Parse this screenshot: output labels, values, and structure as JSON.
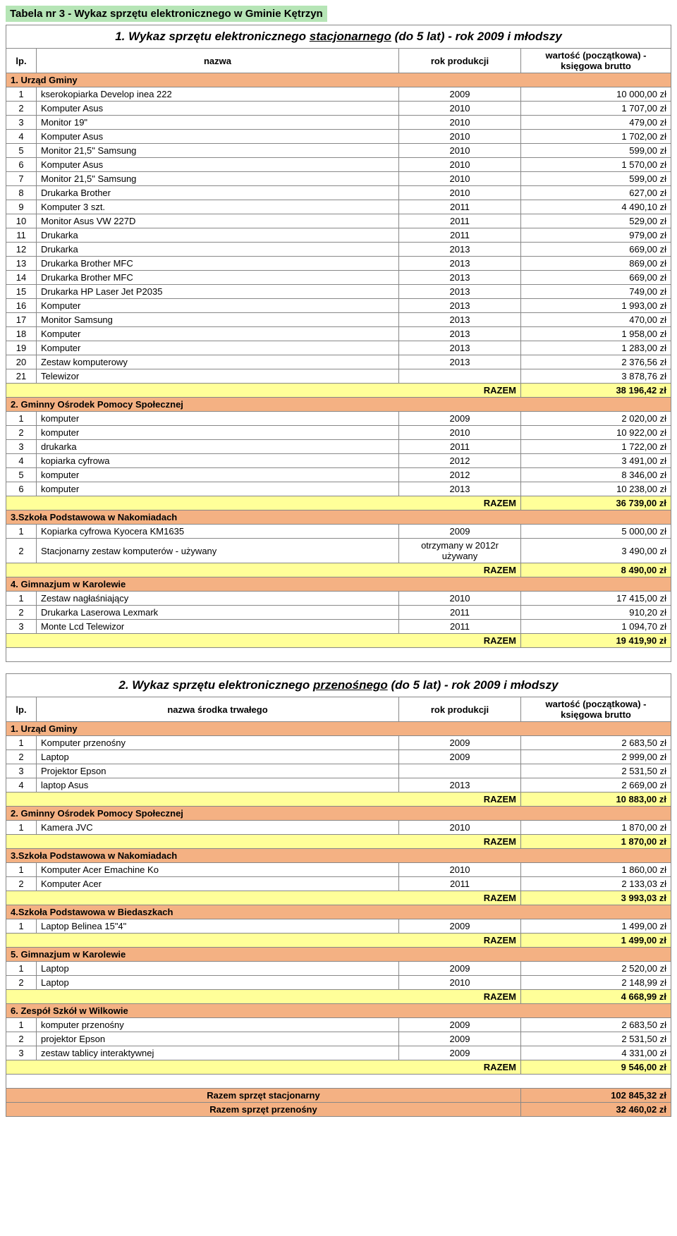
{
  "page_title": "Tabela nr 3 - Wykaz sprzętu elektronicznego w Gminie Kętrzyn",
  "table1": {
    "title_pre": "1. Wykaz sprzętu elektronicznego ",
    "title_underline": "stacjonarnego",
    "title_post": " (do 5 lat) - rok 2009 i młodszy",
    "headers": {
      "lp": "lp.",
      "name": "nazwa",
      "year": "rok produkcji",
      "value": "wartość (początkowa) - księgowa brutto"
    },
    "groups": [
      {
        "title": "1. Urząd Gminy",
        "rows": [
          {
            "lp": "1",
            "name": "kserokopiarka Develop inea 222",
            "year": "2009",
            "value": "10 000,00 zł"
          },
          {
            "lp": "2",
            "name": "Komputer Asus",
            "year": "2010",
            "value": "1 707,00 zł"
          },
          {
            "lp": "3",
            "name": "Monitor 19\"",
            "year": "2010",
            "value": "479,00 zł"
          },
          {
            "lp": "4",
            "name": "Komputer Asus",
            "year": "2010",
            "value": "1 702,00 zł"
          },
          {
            "lp": "5",
            "name": "Monitor 21,5\" Samsung",
            "year": "2010",
            "value": "599,00 zł"
          },
          {
            "lp": "6",
            "name": "Komputer Asus",
            "year": "2010",
            "value": "1 570,00 zł"
          },
          {
            "lp": "7",
            "name": "Monitor 21,5\" Samsung",
            "year": "2010",
            "value": "599,00 zł"
          },
          {
            "lp": "8",
            "name": "Drukarka Brother",
            "year": "2010",
            "value": "627,00 zł"
          },
          {
            "lp": "9",
            "name": "Komputer 3 szt.",
            "year": "2011",
            "value": "4 490,10 zł"
          },
          {
            "lp": "10",
            "name": "Monitor Asus VW 227D",
            "year": "2011",
            "value": "529,00 zł"
          },
          {
            "lp": "11",
            "name": "Drukarka",
            "year": "2011",
            "value": "979,00 zł"
          },
          {
            "lp": "12",
            "name": "Drukarka",
            "year": "2013",
            "value": "669,00 zł"
          },
          {
            "lp": "13",
            "name": "Drukarka Brother MFC",
            "year": "2013",
            "value": "869,00 zł"
          },
          {
            "lp": "14",
            "name": "Drukarka Brother MFC",
            "year": "2013",
            "value": "669,00 zł"
          },
          {
            "lp": "15",
            "name": "Drukarka HP Laser Jet P2035",
            "year": "2013",
            "value": "749,00 zł"
          },
          {
            "lp": "16",
            "name": "Komputer",
            "year": "2013",
            "value": "1 993,00 zł"
          },
          {
            "lp": "17",
            "name": "Monitor Samsung",
            "year": "2013",
            "value": "470,00 zł"
          },
          {
            "lp": "18",
            "name": "Komputer",
            "year": "2013",
            "value": "1 958,00 zł"
          },
          {
            "lp": "19",
            "name": "Komputer",
            "year": "2013",
            "value": "1 283,00 zł"
          },
          {
            "lp": "20",
            "name": "Zestaw komputerowy",
            "year": "2013",
            "value": "2 376,56 zł"
          },
          {
            "lp": "21",
            "name": "Telewizor",
            "year": "",
            "value": "3 878,76 zł"
          }
        ],
        "total_label": "RAZEM",
        "total_value": "38 196,42 zł"
      },
      {
        "title": "2. Gminny Ośrodek Pomocy Społecznej",
        "rows": [
          {
            "lp": "1",
            "name": "komputer",
            "year": "2009",
            "value": "2 020,00 zł"
          },
          {
            "lp": "2",
            "name": "komputer",
            "year": "2010",
            "value": "10 922,00 zł"
          },
          {
            "lp": "3",
            "name": "drukarka",
            "year": "2011",
            "value": "1 722,00 zł"
          },
          {
            "lp": "4",
            "name": "kopiarka cyfrowa",
            "year": "2012",
            "value": "3 491,00 zł"
          },
          {
            "lp": "5",
            "name": "komputer",
            "year": "2012",
            "value": "8 346,00 zł"
          },
          {
            "lp": "6",
            "name": "komputer",
            "year": "2013",
            "value": "10 238,00 zł"
          }
        ],
        "total_label": "RAZEM",
        "total_value": "36 739,00 zł"
      },
      {
        "title": "3.Szkoła Podstawowa w Nakomiadach",
        "rows": [
          {
            "lp": "1",
            "name": "Kopiarka cyfrowa Kyocera KM1635",
            "year": "2009",
            "value": "5 000,00 zł"
          },
          {
            "lp": "2",
            "name": "Stacjonarny zestaw komputerów - używany",
            "year": "otrzymany w 2012r używany",
            "value": "3 490,00 zł"
          }
        ],
        "total_label": "RAZEM",
        "total_value": "8 490,00 zł"
      },
      {
        "title": "4. Gimnazjum w Karolewie",
        "rows": [
          {
            "lp": "1",
            "name": "Zestaw nagłaśniający",
            "year": "2010",
            "value": "17 415,00 zł"
          },
          {
            "lp": "2",
            "name": "Drukarka Laserowa Lexmark",
            "year": "2011",
            "value": "910,20 zł"
          },
          {
            "lp": "3",
            "name": "Monte Lcd Telewizor",
            "year": "2011",
            "value": "1 094,70 zł"
          }
        ],
        "total_label": "RAZEM",
        "total_value": "19 419,90 zł"
      }
    ]
  },
  "table2": {
    "title_pre": "2. Wykaz sprzętu elektronicznego ",
    "title_underline": "przenośnego",
    "title_post": " (do 5 lat) - rok 2009 i młodszy",
    "headers": {
      "lp": "lp.",
      "name": "nazwa środka trwałego",
      "year": "rok produkcji",
      "value": "wartość (początkowa) - księgowa brutto"
    },
    "groups": [
      {
        "title": "1. Urząd Gminy",
        "rows": [
          {
            "lp": "1",
            "name": "Komputer przenośny",
            "year": "2009",
            "value": "2 683,50 zł"
          },
          {
            "lp": "2",
            "name": "Laptop",
            "year": "2009",
            "value": "2 999,00 zł"
          },
          {
            "lp": "3",
            "name": "Projektor Epson",
            "year": "",
            "value": "2 531,50 zł"
          },
          {
            "lp": "4",
            "name": "laptop Asus",
            "year": "2013",
            "value": "2 669,00 zł"
          }
        ],
        "total_label": "RAZEM",
        "total_value": "10 883,00 zł"
      },
      {
        "title": "2. Gminny Ośrodek Pomocy Społecznej",
        "rows": [
          {
            "lp": "1",
            "name": "Kamera JVC",
            "year": "2010",
            "value": "1 870,00 zł"
          }
        ],
        "total_label": "RAZEM",
        "total_value": "1 870,00 zł"
      },
      {
        "title": "3.Szkoła Podstawowa w Nakomiadach",
        "rows": [
          {
            "lp": "1",
            "name": "Komputer Acer Emachine Ko",
            "year": "2010",
            "value": "1 860,00 zł"
          },
          {
            "lp": "2",
            "name": "Komputer Acer",
            "year": "2011",
            "value": "2 133,03 zł"
          }
        ],
        "total_label": "RAZEM",
        "total_value": "3 993,03 zł"
      },
      {
        "title": "4.Szkoła Podstawowa w Biedaszkach",
        "rows": [
          {
            "lp": "1",
            "name": "Laptop Belinea 15\"4\"",
            "year": "2009",
            "value": "1 499,00 zł"
          }
        ],
        "total_label": "RAZEM",
        "total_value": "1 499,00 zł"
      },
      {
        "title": "5. Gimnazjum w Karolewie",
        "rows": [
          {
            "lp": "1",
            "name": "Laptop",
            "year": "2009",
            "value": "2 520,00 zł"
          },
          {
            "lp": "2",
            "name": "Laptop",
            "year": "2010",
            "value": "2 148,99 zł"
          }
        ],
        "total_label": "RAZEM",
        "total_value": "4 668,99 zł"
      },
      {
        "title": "6. Zespół Szkół w Wilkowie",
        "rows": [
          {
            "lp": "1",
            "name": "komputer przenośny",
            "year": "2009",
            "value": "2 683,50 zł"
          },
          {
            "lp": "2",
            "name": "projektor Epson",
            "year": "2009",
            "value": "2 531,50 zł"
          },
          {
            "lp": "3",
            "name": "zestaw tablicy interaktywnej",
            "year": "2009",
            "value": "4 331,00 zł"
          }
        ],
        "total_label": "RAZEM",
        "total_value": "9 546,00 zł"
      }
    ],
    "summary": [
      {
        "label": "Razem sprzęt stacjonarny",
        "value": "102 845,32 zł"
      },
      {
        "label": "Razem sprzęt przenośny",
        "value": "32 460,02 zł"
      }
    ]
  }
}
